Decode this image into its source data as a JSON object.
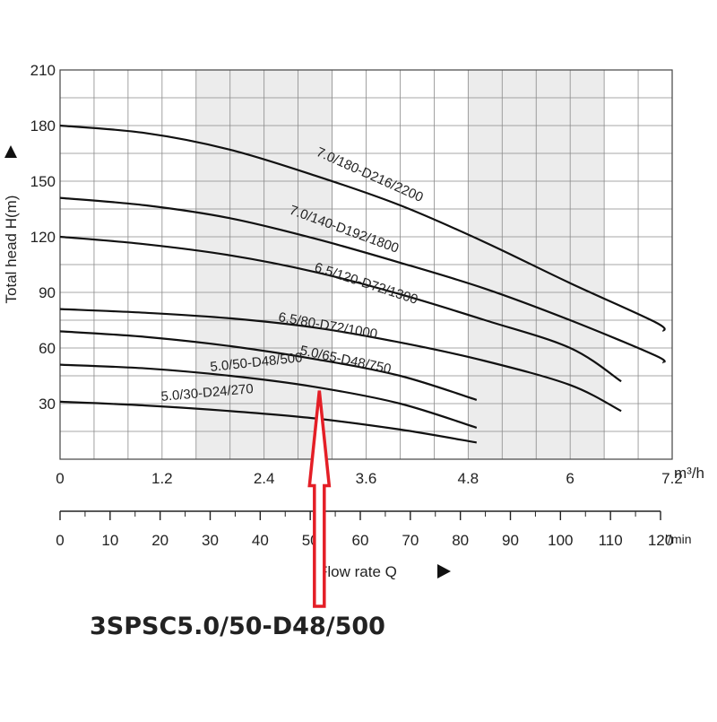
{
  "colors": {
    "shade": "#ececec",
    "grid": "#8a8a8a",
    "curve": "#111111",
    "accent": "#e41e26",
    "text": "#222222"
  },
  "chart_data": {
    "type": "line",
    "title": "",
    "ylabel": "Total head H(m)",
    "xlabel": "Flow rate Q",
    "x_unit": "m³/h",
    "x2_unit": "l/min",
    "xlim": [
      0,
      7.2
    ],
    "ylim": [
      0,
      210
    ],
    "x_ticks": [
      0,
      1.2,
      2.4,
      3.6,
      4.8,
      6,
      7.2
    ],
    "x_tick_labels": [
      "0",
      "1.2",
      "2.4",
      "3.6",
      "4.8",
      "6",
      "7.2"
    ],
    "y_ticks": [
      30,
      60,
      90,
      120,
      150,
      180,
      210
    ],
    "y_tick_labels": [
      "30",
      "60",
      "90",
      "120",
      "150",
      "180",
      "210"
    ],
    "x2_ticks": [
      0,
      10,
      20,
      30,
      40,
      50,
      60,
      70,
      80,
      90,
      100,
      110,
      120
    ],
    "x2_tick_labels": [
      "0",
      "10",
      "20",
      "30",
      "40",
      "50",
      "60",
      "70",
      "80",
      "90",
      "100",
      "110",
      "120"
    ],
    "shaded_x_ranges": [
      [
        1.6,
        3.2
      ],
      [
        4.8,
        6.4
      ]
    ],
    "series": [
      {
        "name": "7.0/180-D216/2200",
        "x": [
          0,
          1,
          2,
          3,
          4,
          5,
          6,
          7,
          7.1
        ],
        "y": [
          180,
          176,
          167,
          153,
          137,
          117,
          95,
          74,
          69
        ]
      },
      {
        "name": "7.0/140-D192/1800",
        "x": [
          0,
          1,
          2,
          3,
          4,
          5,
          6,
          7,
          7.1
        ],
        "y": [
          141,
          137,
          130,
          119,
          106,
          92,
          75,
          56,
          52
        ]
      },
      {
        "name": "6.5/120-D72/1300",
        "x": [
          0,
          1,
          2,
          3,
          4,
          5,
          6,
          6.6
        ],
        "y": [
          120,
          116,
          110,
          101,
          89,
          75,
          60,
          42
        ]
      },
      {
        "name": "6.5/80-D72/1000",
        "x": [
          0,
          1,
          2,
          3,
          4,
          5,
          6,
          6.6
        ],
        "y": [
          81,
          79,
          76,
          71,
          63,
          53,
          40,
          26
        ]
      },
      {
        "name": "5.0/65-D48/750",
        "x": [
          0,
          1,
          2,
          3,
          4,
          4.9
        ],
        "y": [
          69,
          66,
          61,
          54,
          45,
          32
        ]
      },
      {
        "name": "5.0/50-D48/500",
        "x": [
          0,
          1,
          2,
          3,
          4,
          4.9
        ],
        "y": [
          51,
          49,
          45,
          39,
          30,
          17
        ]
      },
      {
        "name": "5.0/30-D24/270",
        "x": [
          0,
          1,
          2,
          3,
          4,
          4.9
        ],
        "y": [
          31,
          29,
          26,
          22,
          16,
          9
        ]
      }
    ],
    "annotations": [
      {
        "text": "3SPSC5.0/50-D48/500",
        "points_to_series": "5.0/50-D48/500",
        "x": 3.05,
        "y": 37
      }
    ]
  }
}
